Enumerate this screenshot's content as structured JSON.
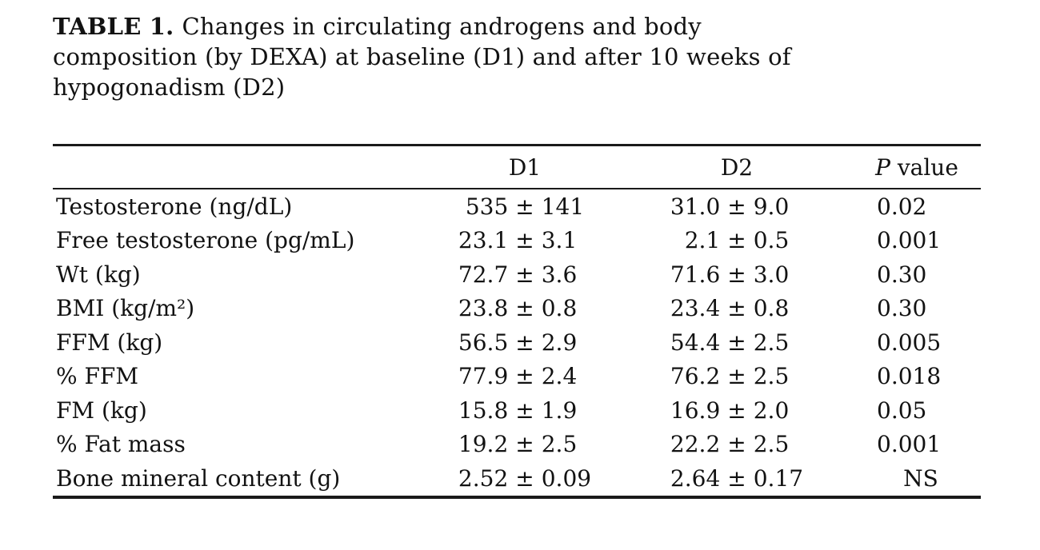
{
  "title": {
    "label": "TABLE 1.",
    "lines": [
      "Changes in circulating androgens and body",
      "composition (by DEXA) at baseline (D1) and after 10 weeks of",
      "hypogonadism (D2)"
    ]
  },
  "table": {
    "plus_minus": "±",
    "headers": {
      "d1": "D1",
      "d2": "D2",
      "p_italic": "P",
      "p_rest": " value"
    },
    "rows": [
      {
        "label": "Testosterone (ng/dL)",
        "d1m": "535",
        "d1s": "141",
        "d2m": "31.0",
        "d2s": "9.0",
        "p": "0.02"
      },
      {
        "label": "Free testosterone (pg/mL)",
        "d1m": "23.1",
        "d1s": "3.1",
        "d2m": "2.1",
        "d2s": "0.5",
        "p": "0.001"
      },
      {
        "label": "Wt (kg)",
        "d1m": "72.7",
        "d1s": "3.6",
        "d2m": "71.6",
        "d2s": "3.0",
        "p": "0.30"
      },
      {
        "label": "BMI (kg/m²)",
        "d1m": "23.8",
        "d1s": "0.8",
        "d2m": "23.4",
        "d2s": "0.8",
        "p": "0.30"
      },
      {
        "label": "FFM (kg)",
        "d1m": "56.5",
        "d1s": "2.9",
        "d2m": "54.4",
        "d2s": "2.5",
        "p": "0.005"
      },
      {
        "label": "% FFM",
        "d1m": "77.9",
        "d1s": "2.4",
        "d2m": "76.2",
        "d2s": "2.5",
        "p": "0.018"
      },
      {
        "label": "FM (kg)",
        "d1m": "15.8",
        "d1s": "1.9",
        "d2m": "16.9",
        "d2s": "2.0",
        "p": "0.05"
      },
      {
        "label": "% Fat mass",
        "d1m": "19.2",
        "d1s": "2.5",
        "d2m": "22.2",
        "d2s": "2.5",
        "p": "0.001"
      },
      {
        "label": "Bone mineral content (g)",
        "d1m": "2.52",
        "d1s": "0.09",
        "d2m": "2.64",
        "d2s": "0.17",
        "p": "NS"
      }
    ]
  }
}
